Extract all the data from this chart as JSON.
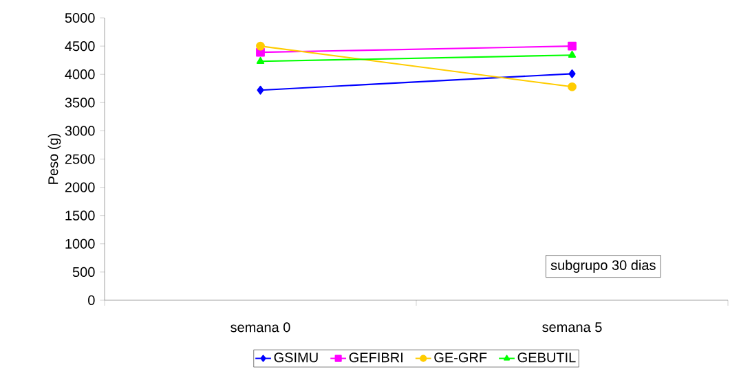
{
  "chart_data": {
    "type": "line",
    "ylabel": "Peso (g)",
    "categories": [
      "semana 0",
      "semana 5"
    ],
    "series": [
      {
        "name": "GSIMU",
        "color": "#0000ff",
        "marker": "diamond",
        "values": [
          3720,
          4010
        ]
      },
      {
        "name": "GEFIBRI",
        "color": "#ff00ff",
        "marker": "square",
        "values": [
          4390,
          4500
        ]
      },
      {
        "name": "GE-GRF",
        "color": "#ffcc00",
        "marker": "circle",
        "values": [
          4500,
          3780
        ]
      },
      {
        "name": "GEBUTIL",
        "color": "#00ff00",
        "marker": "triangle",
        "values": [
          4230,
          4340
        ]
      }
    ],
    "ylim": [
      0,
      5000
    ],
    "yticks": [
      0,
      500,
      1000,
      1500,
      2000,
      2500,
      3000,
      3500,
      4000,
      4500,
      5000
    ],
    "legend": "bottom",
    "grid": false,
    "line_style": "solid",
    "annotations": [
      "subgrupo 30 dias"
    ]
  }
}
